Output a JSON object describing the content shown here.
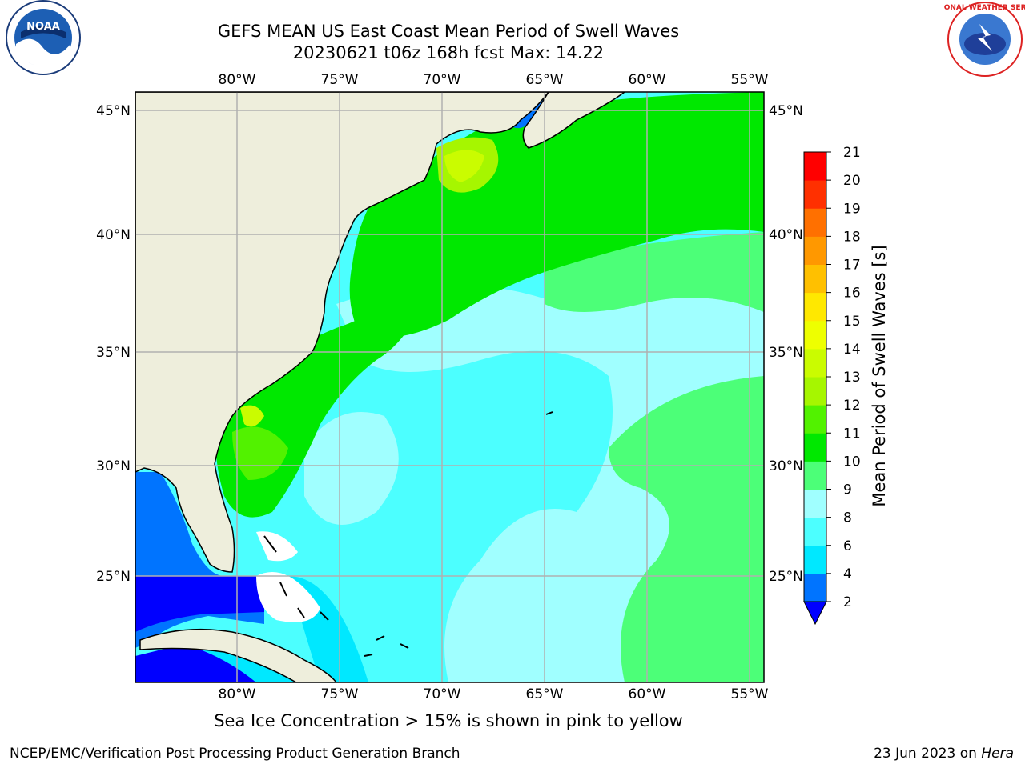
{
  "header": {
    "title_line1": "GEFS MEAN US East Coast Mean Period of Swell Waves",
    "title_line2": "20230621 t06z 168h fcst   Max: 14.22"
  },
  "logos": {
    "left": {
      "icon": "noaa-logo",
      "text": "NOAA"
    },
    "right": {
      "icon": "nws-logo",
      "text": "NATIONAL WEATHER SERVICE"
    }
  },
  "map": {
    "lon_labels": [
      "80°W",
      "75°W",
      "70°W",
      "65°W",
      "60°W",
      "55°W"
    ],
    "lat_labels": [
      "45°N",
      "40°N",
      "35°N",
      "30°N",
      "25°N"
    ],
    "colors": {
      "land": "#eeeedc",
      "grid": "#b0b0b0",
      "coast": "#000000"
    }
  },
  "colorbar": {
    "label": "Mean Period of Swell Waves [s]",
    "ticks": [
      "2",
      "4",
      "6",
      "8",
      "9",
      "10",
      "11",
      "12",
      "13",
      "14",
      "15",
      "16",
      "17",
      "18",
      "19",
      "20",
      "21"
    ],
    "colors": [
      "#0000ff",
      "#0074ff",
      "#00e8ff",
      "#4cffff",
      "#a0ffff",
      "#4cff78",
      "#00e800",
      "#52f200",
      "#a6f600",
      "#cafc00",
      "#eeff00",
      "#ffe800",
      "#ffc000",
      "#ff9800",
      "#ff7000",
      "#ff3000",
      "#ff0000"
    ]
  },
  "note": "Sea Ice Concentration > 15% is shown in pink to yellow",
  "footer": {
    "left": "NCEP/EMC/Verification Post Processing Product Generation Branch",
    "right_date": "23 Jun 2023 on ",
    "right_host": "Hera"
  }
}
